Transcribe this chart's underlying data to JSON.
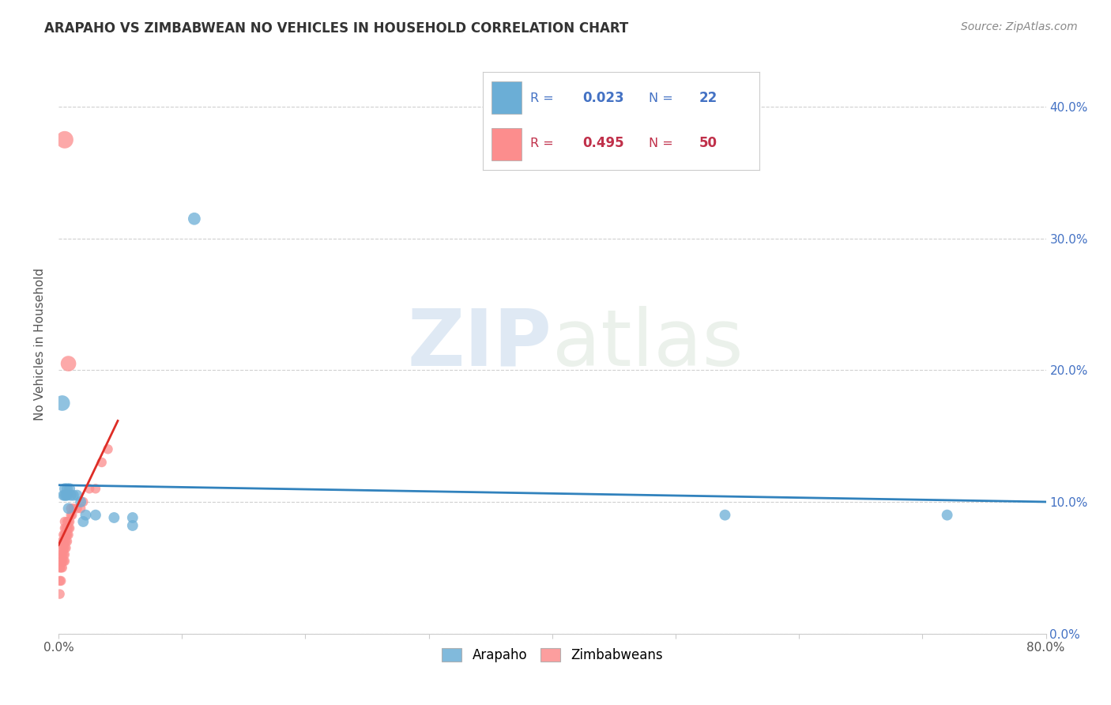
{
  "title": "ARAPAHO VS ZIMBABWEAN NO VEHICLES IN HOUSEHOLD CORRELATION CHART",
  "source": "Source: ZipAtlas.com",
  "ylabel": "No Vehicles in Household",
  "xlim": [
    0.0,
    0.8
  ],
  "ylim": [
    0.0,
    0.44
  ],
  "xticks": [
    0.0,
    0.1,
    0.2,
    0.3,
    0.4,
    0.5,
    0.6,
    0.7,
    0.8
  ],
  "xtick_labels": [
    "0.0%",
    "",
    "",
    "",
    "",
    "",
    "",
    "",
    "80.0%"
  ],
  "yticks_right": [
    0.0,
    0.1,
    0.2,
    0.3,
    0.4
  ],
  "ytick_labels_right": [
    "0.0%",
    "10.0%",
    "20.0%",
    "30.0%",
    "40.0%"
  ],
  "arapaho_color": "#6baed6",
  "zimbabwean_color": "#fc8d8d",
  "trendline_arapaho_color": "#3182bd",
  "trendline_zimbabwean_color": "#de2d26",
  "trendline_zim_dash": true,
  "legend_R_arapaho": "0.023",
  "legend_N_arapaho": "22",
  "legend_R_zimbabwean": "0.495",
  "legend_N_zimbabwean": "50",
  "watermark_zip": "ZIP",
  "watermark_atlas": "atlas",
  "background_color": "#ffffff",
  "grid_color": "#d0d0d0",
  "arapaho_x": [
    0.003,
    0.004,
    0.005,
    0.005,
    0.006,
    0.007,
    0.007,
    0.008,
    0.009,
    0.01,
    0.012,
    0.015,
    0.018,
    0.02,
    0.022,
    0.03,
    0.045,
    0.06,
    0.06,
    0.11,
    0.54,
    0.72
  ],
  "arapaho_y": [
    0.175,
    0.105,
    0.105,
    0.11,
    0.105,
    0.11,
    0.105,
    0.095,
    0.11,
    0.105,
    0.105,
    0.105,
    0.1,
    0.085,
    0.09,
    0.09,
    0.088,
    0.088,
    0.082,
    0.315,
    0.09,
    0.09
  ],
  "arapaho_sizes": [
    200,
    100,
    100,
    100,
    100,
    100,
    100,
    100,
    100,
    100,
    100,
    100,
    100,
    100,
    100,
    100,
    100,
    100,
    100,
    130,
    100,
    100
  ],
  "zimbabwean_x": [
    0.001,
    0.001,
    0.001,
    0.002,
    0.002,
    0.002,
    0.002,
    0.003,
    0.003,
    0.003,
    0.003,
    0.003,
    0.004,
    0.004,
    0.004,
    0.004,
    0.004,
    0.005,
    0.005,
    0.005,
    0.005,
    0.005,
    0.005,
    0.005,
    0.006,
    0.006,
    0.006,
    0.006,
    0.007,
    0.007,
    0.007,
    0.007,
    0.008,
    0.008,
    0.008,
    0.009,
    0.009,
    0.01,
    0.01,
    0.011,
    0.012,
    0.015,
    0.018,
    0.02,
    0.025,
    0.03,
    0.035,
    0.04,
    0.008,
    0.005
  ],
  "zimbabwean_y": [
    0.03,
    0.04,
    0.05,
    0.04,
    0.05,
    0.055,
    0.06,
    0.05,
    0.055,
    0.06,
    0.065,
    0.07,
    0.055,
    0.06,
    0.065,
    0.07,
    0.075,
    0.055,
    0.06,
    0.065,
    0.07,
    0.075,
    0.08,
    0.085,
    0.065,
    0.07,
    0.075,
    0.08,
    0.07,
    0.075,
    0.08,
    0.085,
    0.075,
    0.08,
    0.085,
    0.08,
    0.085,
    0.09,
    0.095,
    0.09,
    0.095,
    0.095,
    0.095,
    0.1,
    0.11,
    0.11,
    0.13,
    0.14,
    0.205,
    0.375
  ],
  "zimbabwean_sizes": [
    80,
    80,
    80,
    80,
    80,
    80,
    80,
    80,
    80,
    80,
    80,
    80,
    80,
    80,
    80,
    80,
    80,
    80,
    80,
    80,
    80,
    80,
    80,
    80,
    80,
    80,
    80,
    80,
    80,
    80,
    80,
    80,
    80,
    80,
    80,
    80,
    80,
    80,
    80,
    80,
    80,
    80,
    80,
    80,
    80,
    80,
    80,
    80,
    200,
    250
  ],
  "zim_trendline_x_start": 0.0,
  "zim_trendline_x_end": 0.048
}
